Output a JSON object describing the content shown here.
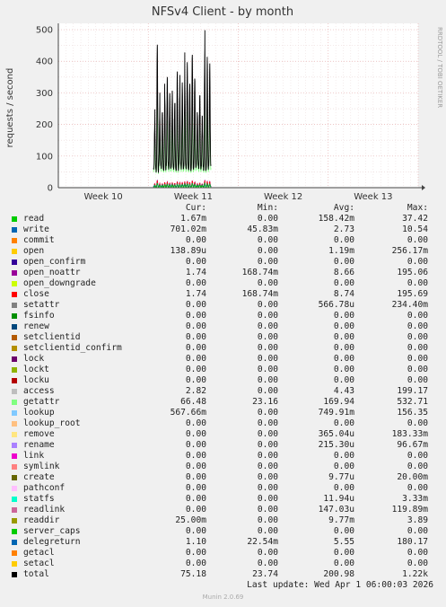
{
  "title": "NFSv4 Client - by month",
  "ylabel": "requests / second",
  "side_label": "RRDTOOL / TOBI OETIKER",
  "footer": {
    "last_update": "Last update: Wed Apr  1 06:00:03 2026",
    "version": "Munin 2.0.69"
  },
  "legend_headers": {
    "cur": "Cur:",
    "min": "Min:",
    "avg": "Avg:",
    "max": "Max:"
  },
  "chart_data": {
    "type": "line",
    "title": "NFSv4 Client - by month",
    "ylabel": "requests / second",
    "ylim": [
      0,
      520
    ],
    "yticks": [
      0,
      100,
      200,
      300,
      400,
      500
    ],
    "x_range": [
      0,
      48
    ],
    "x_ticks": [
      {
        "label": "Week 10",
        "x": 6
      },
      {
        "label": "Week 11",
        "x": 18
      },
      {
        "label": "Week 12",
        "x": 30
      },
      {
        "label": "Week 13",
        "x": 42
      }
    ],
    "data_start": 12.7,
    "daily_peaks": [
      210,
      455,
      230,
      240,
      290,
      350,
      300,
      305,
      270,
      365,
      290,
      330,
      355,
      395,
      330,
      420,
      345,
      240,
      290,
      230,
      435,
      400,
      380
    ],
    "daily_troughs": [
      60,
      50,
      70,
      60,
      55,
      70,
      60,
      65,
      60,
      55,
      70,
      60,
      65,
      60,
      55,
      60,
      65,
      70,
      60,
      65,
      55,
      60,
      70
    ],
    "grid": true,
    "series": [
      {
        "name": "read",
        "color": "#00cc00",
        "cur": "1.67m",
        "min": "0.00",
        "avg": "158.42m",
        "max": "37.42"
      },
      {
        "name": "write",
        "color": "#0066b3",
        "cur": "701.02m",
        "min": "45.83m",
        "avg": "2.73",
        "max": "10.54"
      },
      {
        "name": "commit",
        "color": "#ff8000",
        "cur": "0.00",
        "min": "0.00",
        "avg": "0.00",
        "max": "0.00"
      },
      {
        "name": "open",
        "color": "#ffcc00",
        "cur": "138.89u",
        "min": "0.00",
        "avg": "1.19m",
        "max": "256.17m"
      },
      {
        "name": "open_confirm",
        "color": "#330099",
        "cur": "0.00",
        "min": "0.00",
        "avg": "0.00",
        "max": "0.00"
      },
      {
        "name": "open_noattr",
        "color": "#990099",
        "cur": "1.74",
        "min": "168.74m",
        "avg": "8.66",
        "max": "195.06"
      },
      {
        "name": "open_downgrade",
        "color": "#ccff00",
        "cur": "0.00",
        "min": "0.00",
        "avg": "0.00",
        "max": "0.00"
      },
      {
        "name": "close",
        "color": "#ff0000",
        "cur": "1.74",
        "min": "168.74m",
        "avg": "8.74",
        "max": "195.69"
      },
      {
        "name": "setattr",
        "color": "#808080",
        "cur": "0.00",
        "min": "0.00",
        "avg": "566.78u",
        "max": "234.40m"
      },
      {
        "name": "fsinfo",
        "color": "#008f00",
        "cur": "0.00",
        "min": "0.00",
        "avg": "0.00",
        "max": "0.00"
      },
      {
        "name": "renew",
        "color": "#00487d",
        "cur": "0.00",
        "min": "0.00",
        "avg": "0.00",
        "max": "0.00"
      },
      {
        "name": "setclientid",
        "color": "#b35a00",
        "cur": "0.00",
        "min": "0.00",
        "avg": "0.00",
        "max": "0.00"
      },
      {
        "name": "setclientid_confirm",
        "color": "#b38f00",
        "cur": "0.00",
        "min": "0.00",
        "avg": "0.00",
        "max": "0.00"
      },
      {
        "name": "lock",
        "color": "#6b006b",
        "cur": "0.00",
        "min": "0.00",
        "avg": "0.00",
        "max": "0.00"
      },
      {
        "name": "lockt",
        "color": "#8fb300",
        "cur": "0.00",
        "min": "0.00",
        "avg": "0.00",
        "max": "0.00"
      },
      {
        "name": "locku",
        "color": "#b30000",
        "cur": "0.00",
        "min": "0.00",
        "avg": "0.00",
        "max": "0.00"
      },
      {
        "name": "access",
        "color": "#bebebe",
        "cur": "2.82",
        "min": "0.00",
        "avg": "4.43",
        "max": "199.17"
      },
      {
        "name": "getattr",
        "color": "#80ff80",
        "cur": "66.48",
        "min": "23.16",
        "avg": "169.94",
        "max": "532.71"
      },
      {
        "name": "lookup",
        "color": "#80c9ff",
        "cur": "567.66m",
        "min": "0.00",
        "avg": "749.91m",
        "max": "156.35"
      },
      {
        "name": "lookup_root",
        "color": "#ffc080",
        "cur": "0.00",
        "min": "0.00",
        "avg": "0.00",
        "max": "0.00"
      },
      {
        "name": "remove",
        "color": "#ffe680",
        "cur": "0.00",
        "min": "0.00",
        "avg": "365.04u",
        "max": "183.33m"
      },
      {
        "name": "rename",
        "color": "#aa80ff",
        "cur": "0.00",
        "min": "0.00",
        "avg": "215.30u",
        "max": "96.67m"
      },
      {
        "name": "link",
        "color": "#ee00cc",
        "cur": "0.00",
        "min": "0.00",
        "avg": "0.00",
        "max": "0.00"
      },
      {
        "name": "symlink",
        "color": "#ff8080",
        "cur": "0.00",
        "min": "0.00",
        "avg": "0.00",
        "max": "0.00"
      },
      {
        "name": "create",
        "color": "#666600",
        "cur": "0.00",
        "min": "0.00",
        "avg": "9.77u",
        "max": "20.00m"
      },
      {
        "name": "pathconf",
        "color": "#ffbfff",
        "cur": "0.00",
        "min": "0.00",
        "avg": "0.00",
        "max": "0.00"
      },
      {
        "name": "statfs",
        "color": "#00ffcc",
        "cur": "0.00",
        "min": "0.00",
        "avg": "11.94u",
        "max": "3.33m"
      },
      {
        "name": "readlink",
        "color": "#cc6699",
        "cur": "0.00",
        "min": "0.00",
        "avg": "147.03u",
        "max": "119.89m"
      },
      {
        "name": "readdir",
        "color": "#999900",
        "cur": "25.00m",
        "min": "0.00",
        "avg": "9.77m",
        "max": "3.89"
      },
      {
        "name": "server_caps",
        "color": "#00cc00",
        "cur": "0.00",
        "min": "0.00",
        "avg": "0.00",
        "max": "0.00"
      },
      {
        "name": "delegreturn",
        "color": "#0066b3",
        "cur": "1.10",
        "min": "22.54m",
        "avg": "5.55",
        "max": "180.17"
      },
      {
        "name": "getacl",
        "color": "#ff8000",
        "cur": "0.00",
        "min": "0.00",
        "avg": "0.00",
        "max": "0.00"
      },
      {
        "name": "setacl",
        "color": "#ffcc00",
        "cur": "0.00",
        "min": "0.00",
        "avg": "0.00",
        "max": "0.00"
      },
      {
        "name": "total",
        "color": "#000000",
        "cur": "75.18",
        "min": "23.74",
        "avg": "200.98",
        "max": "1.22k"
      }
    ]
  }
}
